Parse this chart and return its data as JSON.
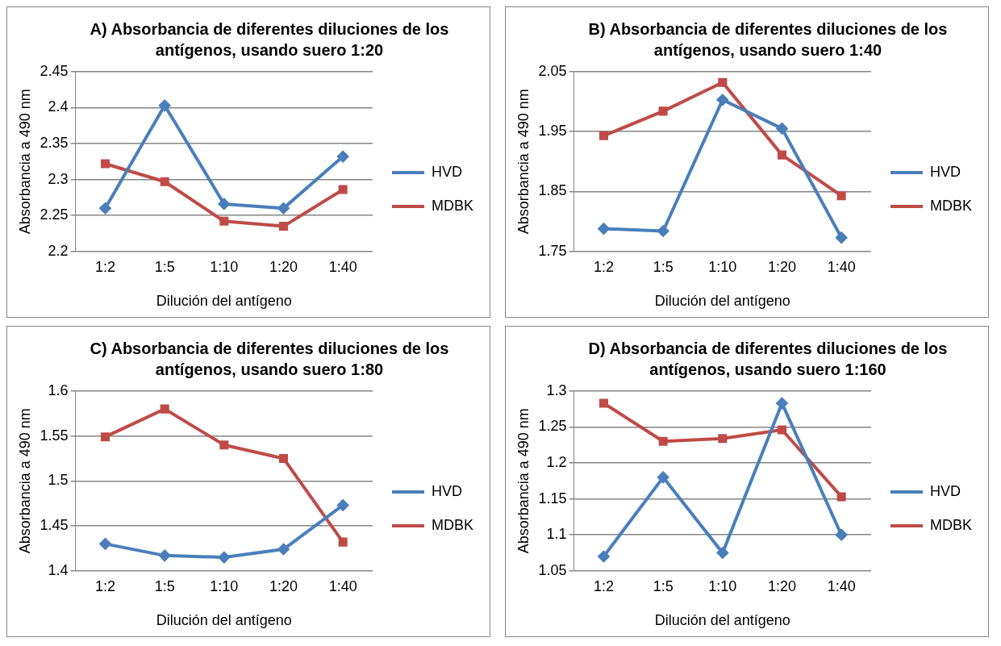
{
  "chart_data": [
    {
      "type": "line",
      "title": "A) Absorbancia de diferentes diluciones de los antígenos, usando suero 1:20",
      "xlabel": "Dilución del antígeno",
      "ylabel": "Absorbancia a 490 nm",
      "categories": [
        "1:2",
        "1:5",
        "1:10",
        "1:20",
        "1:40"
      ],
      "ylim": [
        2.2,
        2.45
      ],
      "yticks": [
        2.2,
        2.25,
        2.3,
        2.35,
        2.4,
        2.45
      ],
      "grid": "y",
      "legend": "right",
      "series": [
        {
          "name": "HVD",
          "color": "#4a7ebb",
          "marker": "diamond",
          "values": [
            2.26,
            2.403,
            2.266,
            2.26,
            2.332
          ]
        },
        {
          "name": "MDBK",
          "color": "#be4b48",
          "marker": "square",
          "values": [
            2.322,
            2.297,
            2.242,
            2.235,
            2.286
          ]
        }
      ]
    },
    {
      "type": "line",
      "title": "B) Absorbancia de diferentes diluciones de los antígenos, usando suero 1:40",
      "xlabel": "Dilución del antígeno",
      "ylabel": "Absorbancia a 490 nm",
      "categories": [
        "1:2",
        "1:5",
        "1:10",
        "1:20",
        "1:40"
      ],
      "ylim": [
        1.75,
        2.05
      ],
      "yticks": [
        1.75,
        1.85,
        1.95,
        2.05
      ],
      "grid": "y",
      "legend": "right",
      "series": [
        {
          "name": "HVD",
          "color": "#4a7ebb",
          "marker": "diamond",
          "values": [
            1.788,
            1.784,
            2.003,
            1.955,
            1.773
          ]
        },
        {
          "name": "MDBK",
          "color": "#be4b48",
          "marker": "square",
          "values": [
            1.943,
            1.984,
            2.032,
            1.911,
            1.843
          ]
        }
      ]
    },
    {
      "type": "line",
      "title": "C) Absorbancia de diferentes diluciones de los antígenos, usando suero 1:80",
      "xlabel": "Dilución del antígeno",
      "ylabel": "Absorbancia a 490 nm",
      "categories": [
        "1:2",
        "1:5",
        "1:10",
        "1:20",
        "1:40"
      ],
      "ylim": [
        1.4,
        1.6
      ],
      "yticks": [
        1.4,
        1.45,
        1.5,
        1.55,
        1.6
      ],
      "grid": "y",
      "legend": "right",
      "series": [
        {
          "name": "HVD",
          "color": "#4a7ebb",
          "marker": "diamond",
          "values": [
            1.43,
            1.417,
            1.415,
            1.424,
            1.473
          ]
        },
        {
          "name": "MDBK",
          "color": "#be4b48",
          "marker": "square",
          "values": [
            1.549,
            1.58,
            1.54,
            1.525,
            1.432
          ]
        }
      ]
    },
    {
      "type": "line",
      "title": "D) Absorbancia de diferentes diluciones de los antígenos, usando suero 1:160",
      "xlabel": "Dilución del antígeno",
      "ylabel": "Absorbancia a 490 nm",
      "categories": [
        "1:2",
        "1:5",
        "1:10",
        "1:20",
        "1:40"
      ],
      "ylim": [
        1.05,
        1.3
      ],
      "yticks": [
        1.05,
        1.1,
        1.15,
        1.2,
        1.25,
        1.3
      ],
      "grid": "y",
      "legend": "right",
      "series": [
        {
          "name": "HVD",
          "color": "#4a7ebb",
          "marker": "diamond",
          "values": [
            1.07,
            1.18,
            1.075,
            1.283,
            1.1
          ]
        },
        {
          "name": "MDBK",
          "color": "#be4b48",
          "marker": "square",
          "values": [
            1.283,
            1.23,
            1.234,
            1.246,
            1.153
          ]
        }
      ]
    }
  ]
}
